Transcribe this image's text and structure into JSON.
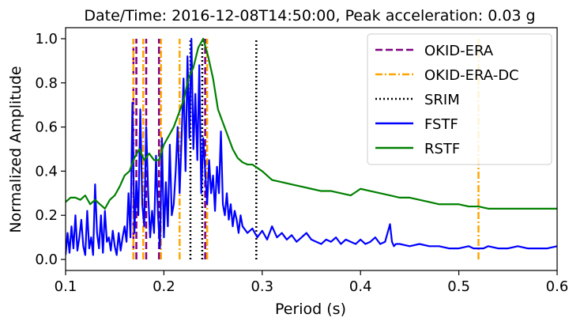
{
  "chart_data": {
    "type": "line",
    "title": "Date/Time: 2016-12-08T14:50:00, Peak acceleration: 0.03 g",
    "xlabel": "Period (s)",
    "ylabel": "Normalized Amplitude",
    "xlim": [
      0.1,
      0.6
    ],
    "ylim": [
      -0.05,
      1.05
    ],
    "xticks": [
      0.1,
      0.2,
      0.3,
      0.4,
      0.5,
      0.6
    ],
    "xtick_labels": [
      "0.1",
      "0.2",
      "0.3",
      "0.4",
      "0.5",
      "0.6"
    ],
    "yticks": [
      0.0,
      0.2,
      0.4,
      0.6,
      0.8,
      1.0
    ],
    "ytick_labels": [
      "0.0",
      "0.2",
      "0.4",
      "0.6",
      "0.8",
      "1.0"
    ],
    "grid": false,
    "legend_position": "top-right",
    "series": [
      {
        "name": "OKID-ERA",
        "kind": "vlines",
        "style": "dashed",
        "color": "#800080",
        "x": [
          0.169,
          0.172,
          0.182,
          0.195,
          0.242
        ],
        "y_range": [
          0.0,
          1.0
        ]
      },
      {
        "name": "OKID-ERA-DC",
        "kind": "vlines",
        "style": "dashdot",
        "color": "#FFA500",
        "x": [
          0.169,
          0.179,
          0.197,
          0.216,
          0.244,
          0.52
        ],
        "y_range": [
          0.0,
          1.0
        ]
      },
      {
        "name": "SRIM",
        "kind": "vlines",
        "style": "dotted",
        "color": "#000000",
        "x": [
          0.227,
          0.239,
          0.294
        ],
        "y_range": [
          0.0,
          1.0
        ]
      },
      {
        "name": "FSTF",
        "kind": "line",
        "style": "solid",
        "color": "#0000FF",
        "x": [
          0.1,
          0.102,
          0.104,
          0.106,
          0.108,
          0.11,
          0.112,
          0.114,
          0.116,
          0.118,
          0.12,
          0.122,
          0.124,
          0.126,
          0.128,
          0.13,
          0.132,
          0.134,
          0.136,
          0.138,
          0.14,
          0.142,
          0.144,
          0.146,
          0.148,
          0.15,
          0.152,
          0.154,
          0.156,
          0.158,
          0.16,
          0.162,
          0.164,
          0.166,
          0.168,
          0.17,
          0.172,
          0.174,
          0.176,
          0.178,
          0.18,
          0.182,
          0.184,
          0.186,
          0.188,
          0.19,
          0.192,
          0.194,
          0.196,
          0.198,
          0.2,
          0.202,
          0.204,
          0.206,
          0.208,
          0.21,
          0.212,
          0.214,
          0.216,
          0.218,
          0.22,
          0.222,
          0.224,
          0.226,
          0.228,
          0.23,
          0.232,
          0.234,
          0.236,
          0.238,
          0.24,
          0.242,
          0.244,
          0.246,
          0.248,
          0.25,
          0.252,
          0.254,
          0.256,
          0.258,
          0.26,
          0.262,
          0.264,
          0.266,
          0.268,
          0.27,
          0.272,
          0.274,
          0.276,
          0.278,
          0.28,
          0.285,
          0.29,
          0.295,
          0.3,
          0.305,
          0.31,
          0.315,
          0.32,
          0.325,
          0.33,
          0.335,
          0.34,
          0.345,
          0.35,
          0.355,
          0.36,
          0.365,
          0.37,
          0.375,
          0.38,
          0.385,
          0.39,
          0.395,
          0.4,
          0.405,
          0.41,
          0.415,
          0.42,
          0.425,
          0.43,
          0.432,
          0.434,
          0.436,
          0.44,
          0.45,
          0.46,
          0.47,
          0.48,
          0.49,
          0.5,
          0.51,
          0.515,
          0.52,
          0.525,
          0.53,
          0.54,
          0.55,
          0.56,
          0.57,
          0.58,
          0.59,
          0.6
        ],
        "y": [
          0.02,
          0.12,
          0.03,
          0.15,
          0.05,
          0.2,
          0.04,
          0.1,
          0.18,
          0.06,
          0.02,
          0.22,
          0.05,
          0.1,
          0.02,
          0.34,
          0.12,
          0.05,
          0.2,
          0.03,
          0.22,
          0.08,
          0.1,
          0.04,
          0.13,
          0.06,
          0.02,
          0.12,
          0.04,
          0.1,
          0.15,
          0.08,
          0.3,
          0.1,
          0.71,
          0.12,
          0.35,
          0.2,
          0.68,
          0.25,
          0.15,
          0.6,
          0.3,
          0.1,
          0.22,
          0.12,
          0.47,
          0.2,
          0.05,
          0.55,
          0.1,
          0.35,
          0.15,
          0.52,
          0.2,
          0.25,
          0.4,
          0.6,
          0.3,
          0.55,
          0.82,
          0.4,
          0.92,
          0.55,
          1.0,
          0.5,
          0.75,
          0.45,
          0.88,
          0.3,
          0.55,
          0.4,
          0.25,
          0.45,
          0.3,
          0.38,
          0.22,
          0.42,
          0.3,
          0.58,
          0.25,
          0.2,
          0.3,
          0.18,
          0.25,
          0.15,
          0.22,
          0.18,
          0.12,
          0.2,
          0.15,
          0.12,
          0.14,
          0.1,
          0.13,
          0.09,
          0.15,
          0.1,
          0.12,
          0.09,
          0.11,
          0.08,
          0.1,
          0.12,
          0.09,
          0.08,
          0.07,
          0.09,
          0.08,
          0.1,
          0.07,
          0.09,
          0.08,
          0.07,
          0.09,
          0.07,
          0.08,
          0.1,
          0.07,
          0.08,
          0.16,
          0.08,
          0.06,
          0.07,
          0.07,
          0.06,
          0.07,
          0.06,
          0.06,
          0.05,
          0.05,
          0.06,
          0.05,
          0.05,
          0.05,
          0.06,
          0.05,
          0.05,
          0.06,
          0.05,
          0.05,
          0.05,
          0.06
        ]
      },
      {
        "name": "RSTF",
        "kind": "line",
        "style": "solid",
        "color": "#008000",
        "x": [
          0.1,
          0.105,
          0.11,
          0.115,
          0.12,
          0.125,
          0.13,
          0.135,
          0.14,
          0.145,
          0.15,
          0.155,
          0.16,
          0.165,
          0.17,
          0.175,
          0.18,
          0.185,
          0.19,
          0.195,
          0.2,
          0.205,
          0.21,
          0.215,
          0.22,
          0.225,
          0.23,
          0.235,
          0.24,
          0.245,
          0.25,
          0.255,
          0.26,
          0.265,
          0.27,
          0.275,
          0.28,
          0.285,
          0.29,
          0.3,
          0.31,
          0.32,
          0.33,
          0.34,
          0.35,
          0.36,
          0.37,
          0.38,
          0.39,
          0.4,
          0.41,
          0.42,
          0.43,
          0.44,
          0.45,
          0.46,
          0.47,
          0.48,
          0.49,
          0.5,
          0.51,
          0.52,
          0.53,
          0.54,
          0.55,
          0.56,
          0.57,
          0.58,
          0.59,
          0.6
        ],
        "y": [
          0.26,
          0.28,
          0.28,
          0.27,
          0.29,
          0.25,
          0.27,
          0.25,
          0.23,
          0.27,
          0.29,
          0.33,
          0.38,
          0.4,
          0.46,
          0.5,
          0.45,
          0.48,
          0.45,
          0.45,
          0.52,
          0.56,
          0.6,
          0.66,
          0.72,
          0.82,
          0.87,
          0.96,
          1.0,
          0.92,
          0.82,
          0.68,
          0.62,
          0.56,
          0.5,
          0.46,
          0.44,
          0.43,
          0.43,
          0.4,
          0.36,
          0.35,
          0.34,
          0.33,
          0.32,
          0.31,
          0.31,
          0.3,
          0.29,
          0.32,
          0.31,
          0.3,
          0.29,
          0.28,
          0.28,
          0.27,
          0.26,
          0.25,
          0.25,
          0.25,
          0.24,
          0.24,
          0.23,
          0.23,
          0.23,
          0.23,
          0.23,
          0.23,
          0.23,
          0.23
        ]
      }
    ]
  }
}
